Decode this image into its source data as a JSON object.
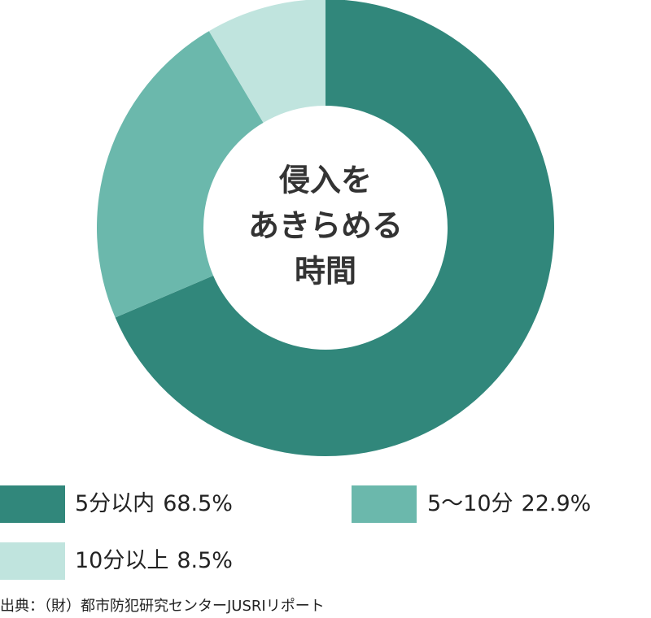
{
  "chart_data": {
    "type": "donut",
    "center_label": [
      "侵入を",
      "あきらめる",
      "時間"
    ],
    "categories": [
      "5分以内",
      "5〜10分",
      "10分以上"
    ],
    "values": [
      68.5,
      22.9,
      8.5
    ],
    "value_labels": [
      "68.5%",
      "22.9%",
      "8.5%"
    ],
    "colors": [
      "#31877b",
      "#6bb8ac",
      "#c0e4de"
    ],
    "source": "出典：（財）都市防犯研究センターJUSRIリポート"
  }
}
